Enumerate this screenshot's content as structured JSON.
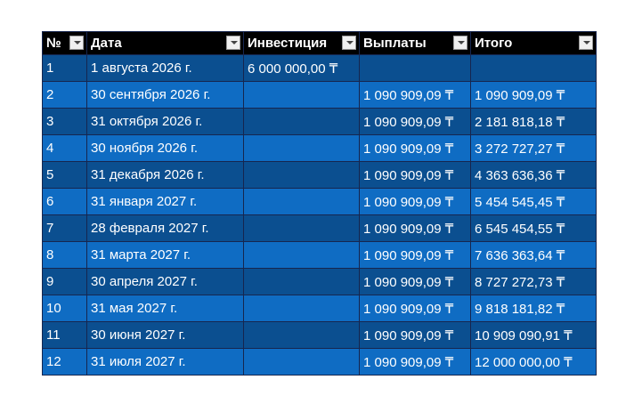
{
  "table": {
    "header": [
      "№",
      "Дата",
      "Инвестиция",
      "Выплаты",
      "Итого"
    ],
    "rows": [
      [
        "1",
        "1 августа 2026 г.",
        "6 000 000,00 ₸",
        null,
        null
      ],
      [
        "2",
        "30 сентября 2026 г.",
        null,
        "1 090 909,09 ₸",
        "1 090 909,09 ₸"
      ],
      [
        "3",
        "31 октября 2026 г.",
        null,
        "1 090 909,09 ₸",
        "2 181 818,18 ₸"
      ],
      [
        "4",
        "30 ноября 2026 г.",
        null,
        "1 090 909,09 ₸",
        "3 272 727,27 ₸"
      ],
      [
        "5",
        "31 декабря 2026 г.",
        null,
        "1 090 909,09 ₸",
        "4 363 636,36 ₸"
      ],
      [
        "6",
        "31 января 2027 г.",
        null,
        "1 090 909,09 ₸",
        "5 454 545,45 ₸"
      ],
      [
        "7",
        "28 февраля 2027 г.",
        null,
        "1 090 909,09 ₸",
        "6 545 454,55 ₸"
      ],
      [
        "8",
        "31 марта 2027 г.",
        null,
        "1 090 909,09 ₸",
        "7 636 363,64 ₸"
      ],
      [
        "9",
        "30 апреля 2027 г.",
        null,
        "1 090 909,09 ₸",
        "8 727 272,73 ₸"
      ],
      [
        "10",
        "31 мая 2027 г.",
        null,
        "1 090 909,09 ₸",
        "9 818 181,82 ₸"
      ],
      [
        "11",
        "30 июня 2027 г.",
        null,
        "1 090 909,09 ₸",
        "10 909 090,91 ₸"
      ],
      [
        "12",
        "31 июля 2027 г.",
        null,
        "1 090 909,09 ₸",
        "12 000 000,00 ₸"
      ]
    ]
  }
}
